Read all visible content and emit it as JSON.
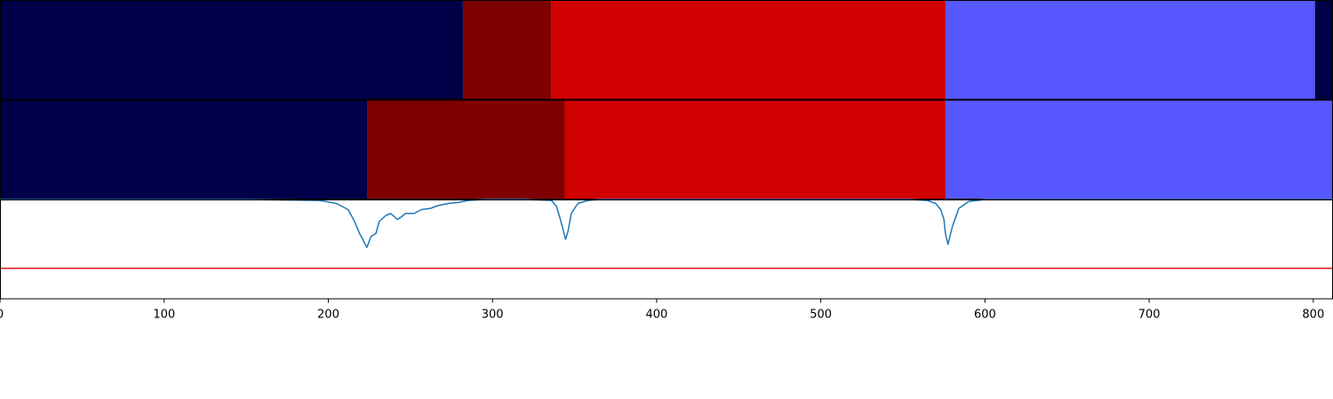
{
  "chart_data": [
    {
      "type": "heatmap",
      "xlim": [
        0,
        812
      ],
      "segments": [
        {
          "start": 0,
          "end": 282,
          "color": "#000048"
        },
        {
          "start": 282,
          "end": 336,
          "color": "#7f0000"
        },
        {
          "start": 336,
          "end": 576,
          "color": "#d10000"
        },
        {
          "start": 576,
          "end": 801,
          "color": "#5757ff"
        },
        {
          "start": 801,
          "end": 812,
          "color": "#000048"
        }
      ]
    },
    {
      "type": "heatmap",
      "xlim": [
        0,
        812
      ],
      "segments": [
        {
          "start": 0,
          "end": 224,
          "color": "#000048"
        },
        {
          "start": 224,
          "end": 344,
          "color": "#7f0000"
        },
        {
          "start": 344,
          "end": 576,
          "color": "#d10000"
        },
        {
          "start": 576,
          "end": 812,
          "color": "#5757ff"
        }
      ]
    },
    {
      "type": "line",
      "xlim": [
        0,
        812
      ],
      "ylim": [
        0,
        1
      ],
      "xticks": [
        0,
        100,
        200,
        300,
        400,
        500,
        600,
        700,
        800
      ],
      "threshold": {
        "y": 0.31,
        "color": "#e8100f"
      },
      "series": [
        {
          "color": "#1f77b4",
          "x": [
            0,
            150,
            195,
            205,
            212,
            216,
            219,
            221,
            222.5,
            223.5,
            226,
            229,
            231,
            235,
            238,
            242,
            244,
            247,
            252,
            257,
            262,
            267,
            273,
            279,
            285,
            295,
            320,
            336,
            339,
            341,
            343,
            344.5,
            346,
            348,
            352,
            358,
            365,
            380,
            450,
            555,
            565,
            570,
            573,
            575,
            576,
            577.5,
            580,
            584,
            590,
            600,
            680,
            812
          ],
          "y": [
            1,
            1,
            0.99,
            0.96,
            0.9,
            0.78,
            0.66,
            0.6,
            0.55,
            0.52,
            0.63,
            0.66,
            0.78,
            0.84,
            0.86,
            0.8,
            0.82,
            0.86,
            0.86,
            0.9,
            0.91,
            0.94,
            0.96,
            0.97,
            0.99,
            1,
            1,
            0.99,
            0.93,
            0.82,
            0.7,
            0.6,
            0.68,
            0.86,
            0.96,
            0.99,
            1,
            1,
            1,
            1,
            0.99,
            0.96,
            0.9,
            0.8,
            0.65,
            0.55,
            0.72,
            0.91,
            0.98,
            1,
            1,
            1
          ]
        }
      ]
    }
  ]
}
